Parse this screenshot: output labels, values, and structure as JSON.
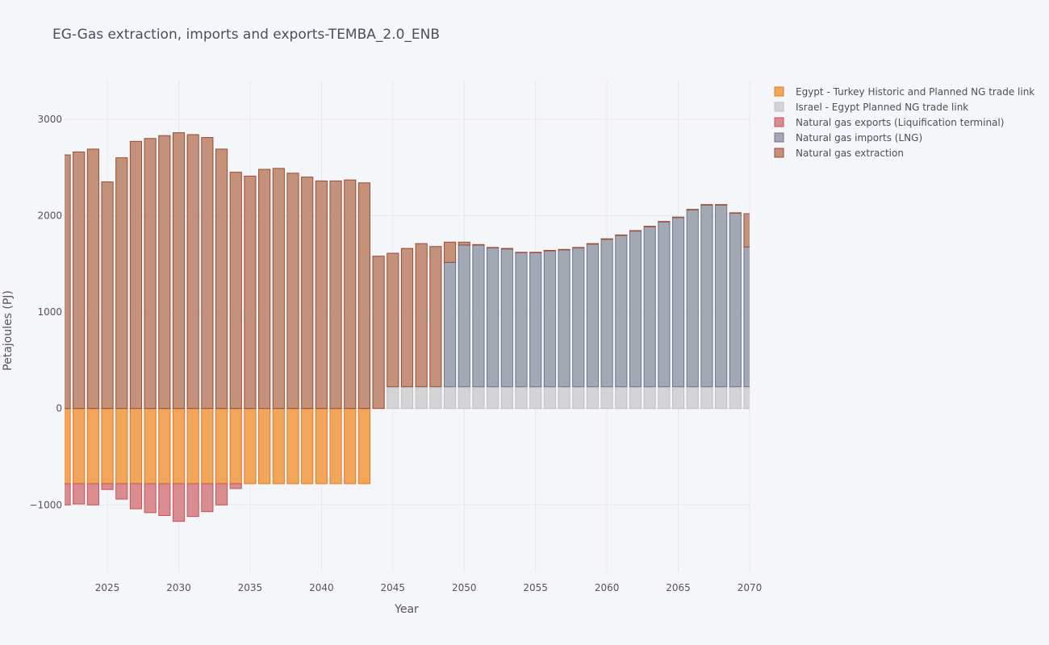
{
  "chart_data": {
    "type": "bar",
    "title": "EG-Gas extraction, imports and exports-TEMBA_2.0_ENB",
    "xlabel": "Year",
    "ylabel": "Petajoules (PJ)",
    "barmode": "relative",
    "xlim": [
      2022,
      2070
    ],
    "ylim": [
      -1700,
      3400
    ],
    "xticks": [
      "2025",
      "2030",
      "2035",
      "2040",
      "2045",
      "2050",
      "2055",
      "2060",
      "2065",
      "2070"
    ],
    "yticks": [
      "−1000",
      "0",
      "1000",
      "2000",
      "3000"
    ],
    "grid": true,
    "legend_position": "top-right",
    "x": [
      2022,
      2023,
      2024,
      2025,
      2026,
      2027,
      2028,
      2029,
      2030,
      2031,
      2032,
      2033,
      2034,
      2035,
      2036,
      2037,
      2038,
      2039,
      2040,
      2041,
      2042,
      2043,
      2044,
      2045,
      2046,
      2047,
      2048,
      2049,
      2050,
      2051,
      2052,
      2053,
      2054,
      2055,
      2056,
      2057,
      2058,
      2059,
      2060,
      2061,
      2062,
      2063,
      2064,
      2065,
      2066,
      2067,
      2068,
      2069,
      2070
    ],
    "series": [
      {
        "name": "Egypt - Turkey Historic and Planned NG trade link",
        "color": "#f2a65a",
        "stroke": "#e07b24",
        "values": [
          -780,
          -780,
          -780,
          -780,
          -780,
          -780,
          -780,
          -780,
          -780,
          -780,
          -780,
          -780,
          -780,
          -780,
          -780,
          -780,
          -780,
          -780,
          -780,
          -780,
          -780,
          -780,
          0,
          0,
          0,
          0,
          0,
          0,
          0,
          0,
          0,
          0,
          0,
          0,
          0,
          0,
          0,
          0,
          0,
          0,
          0,
          0,
          0,
          0,
          0,
          0,
          0,
          0,
          0
        ]
      },
      {
        "name": "Israel - Egypt Planned NG trade link",
        "color": "#d4d4d6",
        "stroke": "#c0c0c2",
        "values": [
          0,
          0,
          0,
          0,
          0,
          0,
          0,
          0,
          0,
          0,
          0,
          0,
          0,
          0,
          0,
          0,
          0,
          0,
          0,
          0,
          0,
          0,
          0,
          225,
          225,
          225,
          225,
          225,
          225,
          225,
          225,
          225,
          225,
          225,
          225,
          225,
          225,
          225,
          225,
          225,
          225,
          225,
          225,
          225,
          225,
          225,
          225,
          225,
          225
        ]
      },
      {
        "name": "Natural gas exports (Liquification terminal)",
        "color": "#db8c8e",
        "stroke": "#c0555a",
        "values": [
          -220,
          -210,
          -220,
          -60,
          -160,
          -260,
          -300,
          -330,
          -390,
          -340,
          -290,
          -220,
          -50,
          0,
          0,
          0,
          0,
          0,
          0,
          0,
          0,
          0,
          0,
          0,
          0,
          0,
          0,
          0,
          0,
          0,
          0,
          0,
          0,
          0,
          0,
          0,
          0,
          0,
          0,
          0,
          0,
          0,
          0,
          0,
          0,
          0,
          0,
          0,
          0
        ]
      },
      {
        "name": "Natural gas imports (LNG)",
        "color": "#a2a8b4",
        "stroke": "#6e7585",
        "values": [
          0,
          0,
          0,
          0,
          0,
          0,
          0,
          0,
          0,
          0,
          0,
          0,
          0,
          0,
          0,
          0,
          0,
          0,
          0,
          0,
          0,
          0,
          0,
          0,
          0,
          0,
          0,
          1290,
          1470,
          1470,
          1440,
          1430,
          1390,
          1390,
          1410,
          1420,
          1440,
          1480,
          1530,
          1570,
          1615,
          1660,
          1710,
          1755,
          1835,
          1885,
          1885,
          1800,
          1450
        ]
      },
      {
        "name": "Natural gas extraction",
        "color": "#c4917a",
        "stroke": "#9c4c33",
        "values": [
          2630,
          2660,
          2690,
          2350,
          2600,
          2770,
          2800,
          2830,
          2860,
          2840,
          2810,
          2690,
          2450,
          2410,
          2480,
          2490,
          2440,
          2400,
          2360,
          2360,
          2370,
          2340,
          1580,
          1385,
          1435,
          1485,
          1455,
          210,
          30,
          5,
          5,
          5,
          5,
          5,
          5,
          5,
          5,
          5,
          5,
          5,
          5,
          5,
          5,
          5,
          5,
          5,
          5,
          5,
          345
        ]
      }
    ]
  }
}
